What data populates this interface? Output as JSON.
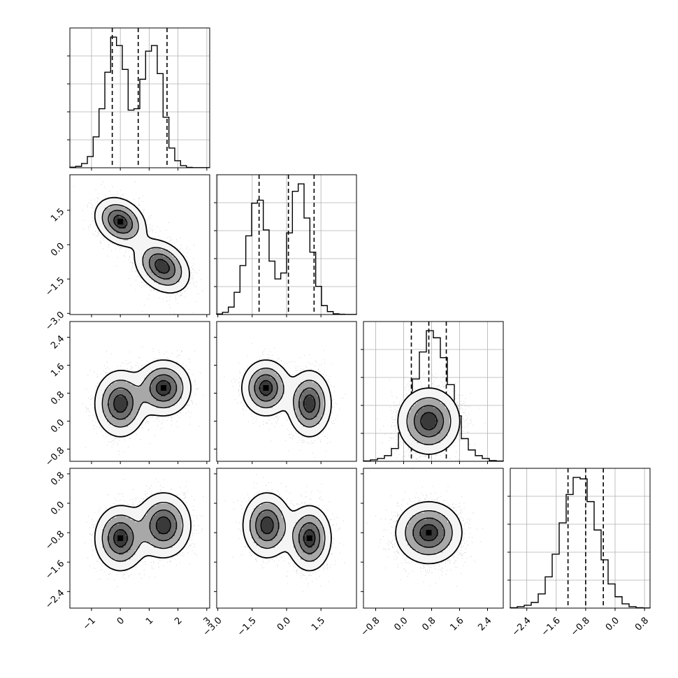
{
  "chart_data": {
    "type": "corner",
    "grid": true,
    "title": "",
    "variables": [
      {
        "range": [
          -1.75,
          3.1
        ],
        "ticks": [
          -1,
          0,
          1,
          2,
          3
        ],
        "tick_labels": [
          "−1",
          "0",
          "1",
          "2",
          "3"
        ],
        "quantiles": [
          -0.28,
          0.62,
          1.62
        ],
        "hist_edges_lo": -1.75,
        "hist_edges_hi": 3.1,
        "hist_counts": [
          0.4,
          1,
          3,
          8,
          22,
          42,
          68,
          93,
          87,
          70,
          41,
          42,
          63,
          83,
          87,
          67,
          36,
          14,
          5,
          1.5,
          0.3,
          0.1,
          0.1,
          0.1
        ]
      },
      {
        "range": [
          -3.05,
          3.05
        ],
        "ticks": [
          -3.0,
          -1.5,
          0.0,
          1.5
        ],
        "tick_labels": [
          "−3.0",
          "−1.5",
          "0.0",
          "1.5"
        ],
        "quantiles": [
          -1.2,
          0.08,
          1.2
        ],
        "hist_edges_lo": -3.05,
        "hist_edges_hi": 3.05,
        "hist_counts": [
          0.4,
          1.5,
          5,
          15,
          33,
          53,
          75,
          77,
          57,
          36,
          24,
          28,
          55,
          83,
          88,
          65,
          42,
          19,
          6,
          2,
          0.5,
          0.2,
          0.1,
          0.1
        ]
      },
      {
        "range": [
          -1.15,
          2.85
        ],
        "ticks": [
          -0.8,
          0.0,
          0.8,
          1.6,
          2.4
        ],
        "tick_labels": [
          "−0.8",
          "0.0",
          "0.8",
          "1.6",
          "2.4"
        ],
        "quantiles": [
          0.22,
          0.72,
          1.22
        ],
        "hist_edges_lo": -1.15,
        "hist_edges_hi": 2.85,
        "hist_counts": [
          0.3,
          1,
          2,
          4,
          9,
          20,
          37,
          58,
          77,
          92,
          87,
          73,
          54,
          32,
          16,
          8,
          4,
          2,
          0.5,
          0.2
        ]
      },
      {
        "range": [
          -2.85,
          0.95
        ],
        "ticks": [
          -2.4,
          -1.6,
          -0.8,
          0.0,
          0.8
        ],
        "tick_labels": [
          "−2.4",
          "−1.6",
          "−0.8",
          "0.0",
          "0.8"
        ],
        "quantiles": [
          -1.28,
          -0.8,
          -0.32
        ],
        "hist_edges_lo": -2.85,
        "hist_edges_hi": 0.95,
        "hist_counts": [
          0.3,
          1,
          2,
          4,
          10,
          22,
          38,
          60,
          80,
          92,
          91,
          75,
          55,
          34,
          17,
          8,
          3,
          1,
          0.3,
          0.1
        ]
      }
    ],
    "pairs": [
      {
        "row": 1,
        "col": 0,
        "clusters": [
          {
            "x": 0.0,
            "y": 1.0,
            "sx": 0.42,
            "sy": 0.5,
            "r": -0.25,
            "w": 1.0
          },
          {
            "x": 1.45,
            "y": -0.95,
            "sx": 0.45,
            "sy": 0.55,
            "r": -0.3,
            "w": 1.0
          }
        ],
        "peak": [
          0.0,
          1.0
        ]
      },
      {
        "row": 2,
        "col": 0,
        "clusters": [
          {
            "x": 0.0,
            "y": 0.5,
            "sx": 0.42,
            "sy": 0.45,
            "r": 0.0,
            "w": 1.0
          },
          {
            "x": 1.5,
            "y": 0.95,
            "sx": 0.45,
            "sy": 0.38,
            "r": 0.0,
            "w": 1.0
          }
        ],
        "peak": [
          1.5,
          0.95
        ]
      },
      {
        "row": 2,
        "col": 1,
        "clusters": [
          {
            "x": -0.9,
            "y": 0.95,
            "sx": 0.5,
            "sy": 0.38,
            "r": 0.0,
            "w": 1.0
          },
          {
            "x": 1.0,
            "y": 0.5,
            "sx": 0.45,
            "sy": 0.45,
            "r": 0.0,
            "w": 1.0
          }
        ],
        "peak": [
          -0.9,
          0.95
        ]
      },
      {
        "row": 2,
        "col": 2,
        "clusters": [
          {
            "x": 0.72,
            "y": 0.0,
            "sx": 0.42,
            "sy": 0.45,
            "r": 0.0,
            "w": 0.0
          }
        ],
        "peak": null
      },
      {
        "row": 3,
        "col": 0,
        "clusters": [
          {
            "x": 0.0,
            "y": -0.95,
            "sx": 0.42,
            "sy": 0.42,
            "r": 0.0,
            "w": 1.0
          },
          {
            "x": 1.5,
            "y": -0.6,
            "sx": 0.45,
            "sy": 0.42,
            "r": 0.0,
            "w": 1.0
          }
        ],
        "peak": [
          0.0,
          -0.95
        ]
      },
      {
        "row": 3,
        "col": 1,
        "clusters": [
          {
            "x": -0.85,
            "y": -0.6,
            "sx": 0.5,
            "sy": 0.42,
            "r": 0.0,
            "w": 1.0
          },
          {
            "x": 1.0,
            "y": -0.95,
            "sx": 0.45,
            "sy": 0.42,
            "r": 0.0,
            "w": 1.0
          }
        ],
        "peak": [
          1.0,
          -0.95
        ]
      },
      {
        "row": 3,
        "col": 2,
        "clusters": [
          {
            "x": 0.72,
            "y": -0.8,
            "sx": 0.45,
            "sy": 0.4,
            "r": 0.0,
            "w": 1.0
          }
        ],
        "peak": [
          0.72,
          -0.8
        ]
      }
    ]
  }
}
